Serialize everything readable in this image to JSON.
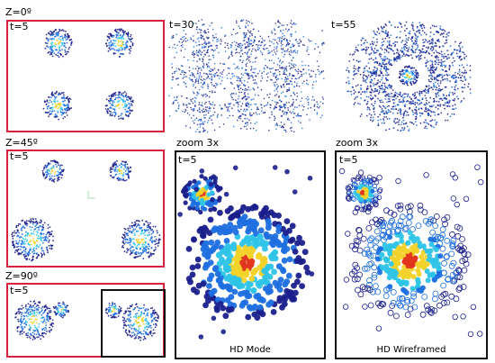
{
  "labels": {
    "row1_angle": "Z=0º",
    "row2_angle": "Z=45º",
    "row3_angle": "Z=90º",
    "t_a": "t=5",
    "t_b": "t=30",
    "t_c": "t=55",
    "t_row2": "t=5",
    "t_row3": "t=5",
    "t_zoom1": "t=5",
    "t_zoom2": "t=5",
    "zoom1": "zoom 3x",
    "zoom2": "zoom 3x",
    "mode1": "HD Mode",
    "mode2": "HD Wireframed"
  },
  "colors": {
    "frame_red": "#d8213d",
    "frame_black": "#111111",
    "particle_dark": "#1a1f8c",
    "particle_mid": "#1e6fe0",
    "particle_light": "#2ec4e8",
    "particle_warm": "#f2d22a",
    "particle_hot": "#e0361e"
  }
}
